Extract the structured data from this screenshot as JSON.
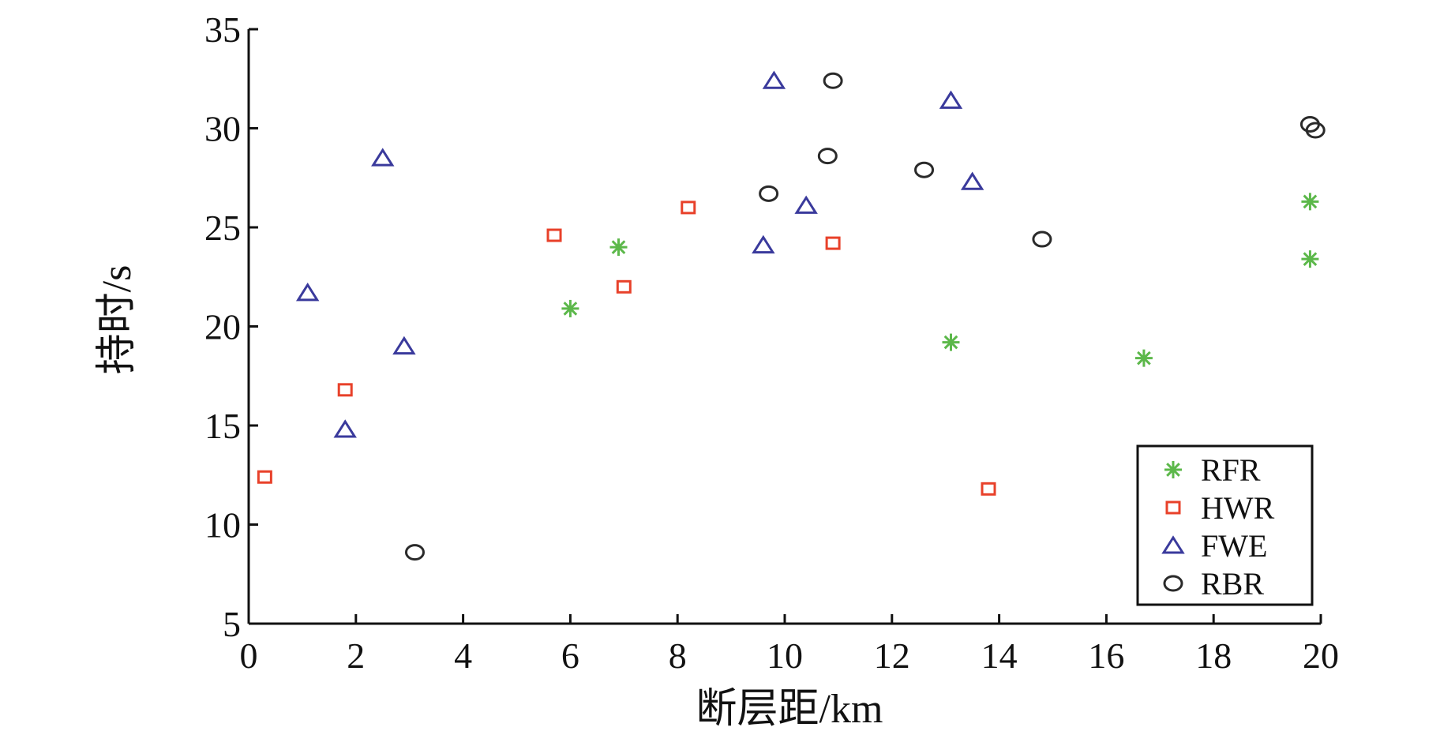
{
  "chart_data": {
    "type": "scatter",
    "title": "",
    "xlabel": "断层距/km",
    "ylabel": "持时/s",
    "xlim": [
      0,
      20
    ],
    "ylim": [
      5,
      35
    ],
    "x_ticks": [
      "0",
      "2",
      "4",
      "6",
      "8",
      "10",
      "12",
      "14",
      "16",
      "18",
      "20"
    ],
    "y_ticks": [
      "5",
      "10",
      "15",
      "20",
      "25",
      "30",
      "35"
    ],
    "grid": false,
    "legend_position": "bottom-right",
    "series": [
      {
        "name": "RFR",
        "marker": "asterisk",
        "color": "#5cb84a",
        "points": [
          [
            6.0,
            20.9
          ],
          [
            6.9,
            24.0
          ],
          [
            13.1,
            19.2
          ],
          [
            16.7,
            18.4
          ],
          [
            19.8,
            26.3
          ],
          [
            19.8,
            23.4
          ]
        ]
      },
      {
        "name": "HWR",
        "marker": "square",
        "color": "#e8412a",
        "points": [
          [
            0.3,
            12.4
          ],
          [
            1.8,
            16.8
          ],
          [
            5.7,
            24.6
          ],
          [
            7.0,
            22.0
          ],
          [
            8.2,
            26.0
          ],
          [
            10.9,
            24.2
          ],
          [
            13.8,
            11.8
          ]
        ]
      },
      {
        "name": "FWE",
        "marker": "triangle",
        "color": "#3a3a9c",
        "points": [
          [
            1.1,
            21.7
          ],
          [
            1.8,
            14.8
          ],
          [
            2.5,
            28.5
          ],
          [
            2.9,
            19.0
          ],
          [
            9.6,
            24.1
          ],
          [
            9.8,
            32.4
          ],
          [
            10.4,
            26.1
          ],
          [
            13.1,
            31.4
          ],
          [
            13.5,
            27.3
          ]
        ]
      },
      {
        "name": "RBR",
        "marker": "circle",
        "color": "#2a2a2a",
        "points": [
          [
            3.1,
            8.6
          ],
          [
            9.7,
            26.7
          ],
          [
            10.8,
            28.6
          ],
          [
            10.9,
            32.4
          ],
          [
            12.6,
            27.9
          ],
          [
            14.8,
            24.4
          ],
          [
            19.8,
            30.2
          ],
          [
            19.9,
            29.9
          ]
        ]
      }
    ]
  }
}
